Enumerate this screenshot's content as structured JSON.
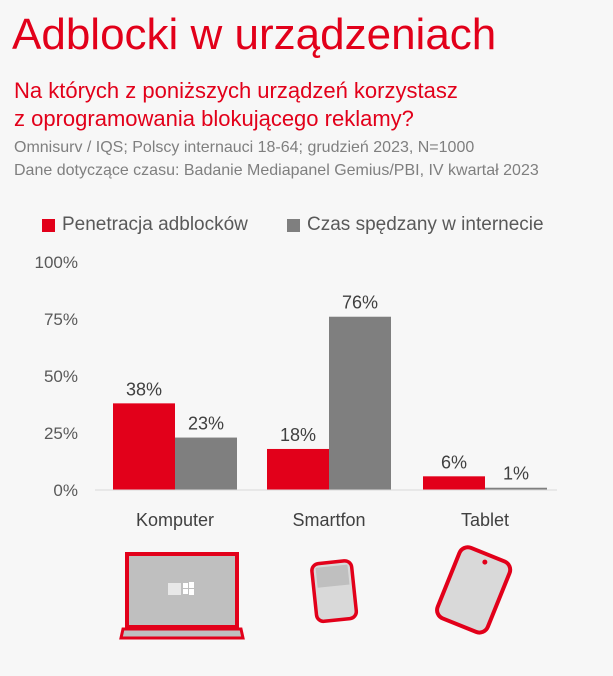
{
  "header": {
    "title": "Adblocki w urządzeniach",
    "question_line1": "Na których z poniższych urządzeń korzystasz",
    "question_line2": "z oprogramowania blokującego reklamy?",
    "source_line1": "Omnisurv / IQS; Polscy internauci 18-64; grudzień 2023, N=1000",
    "source_line2": "Dane dotyczące czasu: Badanie Mediapanel Gemius/PBI, IV kwartał 2023"
  },
  "chart_data": {
    "type": "bar",
    "categories": [
      "Komputer",
      "Smartfon",
      "Tablet"
    ],
    "series": [
      {
        "name": "Penetracja adblocków",
        "values": [
          38,
          18,
          6
        ],
        "labels": [
          "38%",
          "18%",
          "6%"
        ],
        "color": "#e2001a"
      },
      {
        "name": "Czas spędzany w internecie",
        "values": [
          23,
          76,
          1
        ],
        "labels": [
          "23%",
          "76%",
          "1%"
        ],
        "color": "#7f7f7f"
      }
    ],
    "yticks": [
      "0%",
      "25%",
      "50%",
      "75%",
      "100%"
    ],
    "ylim": [
      0,
      100
    ],
    "legend": "top",
    "grid": false
  },
  "icons": [
    "laptop-icon",
    "smartphone-icon",
    "tablet-icon"
  ]
}
